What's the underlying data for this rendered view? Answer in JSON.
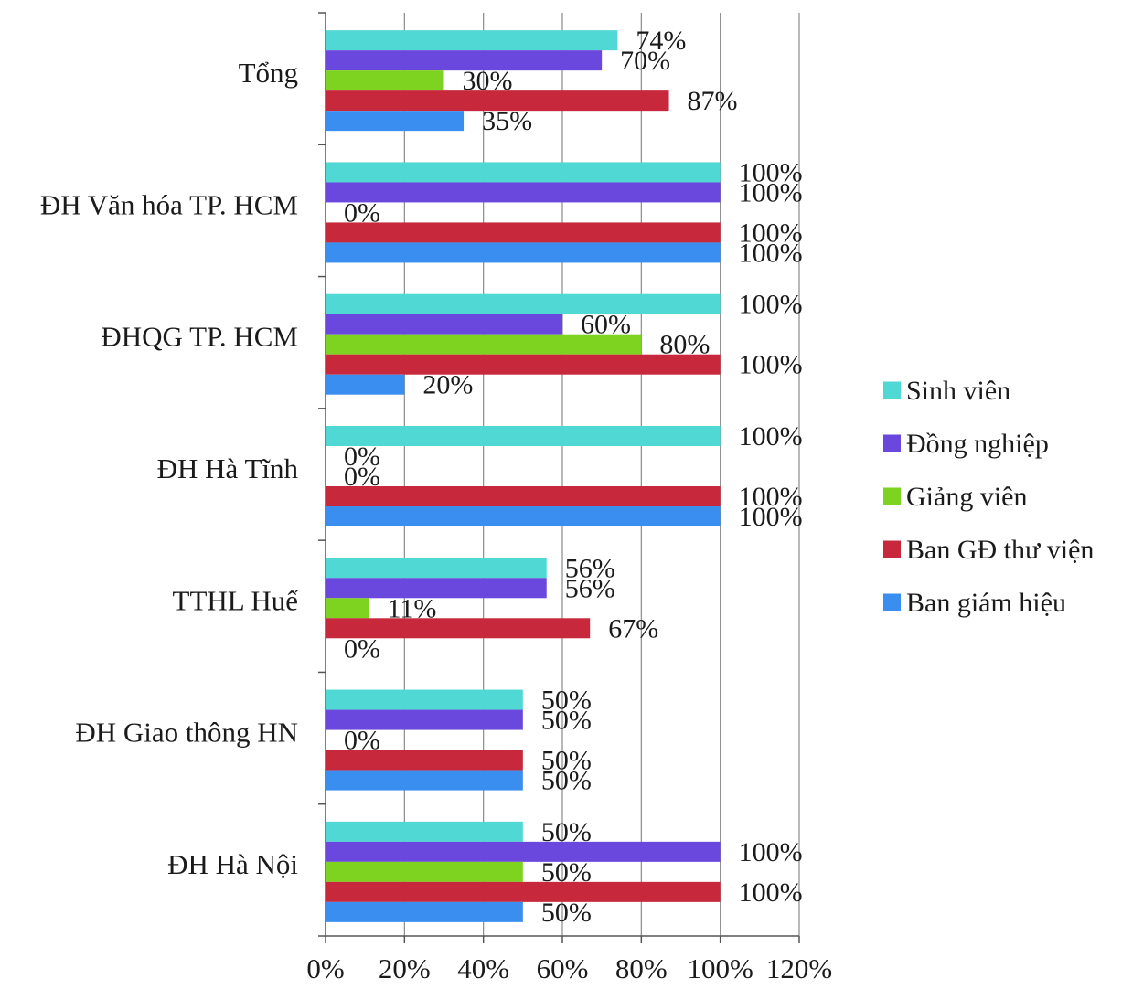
{
  "chart_data": {
    "type": "bar",
    "orientation": "horizontal",
    "categories": [
      "Tổng",
      "ĐH Văn hóa TP. HCM",
      "ĐHQG TP. HCM",
      "ĐH Hà Tĩnh",
      "TTHL Huế",
      "ĐH Giao thông HN",
      "ĐH Hà Nội"
    ],
    "series": [
      {
        "name": "Sinh viên",
        "color": "#4fd8d4",
        "values": [
          74,
          100,
          100,
          100,
          56,
          50,
          50
        ]
      },
      {
        "name": "Đồng nghiệp",
        "color": "#6a48de",
        "values": [
          70,
          100,
          60,
          0,
          56,
          50,
          100
        ]
      },
      {
        "name": "Giảng viên",
        "color": "#7ed321",
        "values": [
          30,
          0,
          80,
          0,
          11,
          0,
          50
        ]
      },
      {
        "name": "Ban GĐ thư viện",
        "color": "#c8283c",
        "values": [
          87,
          100,
          100,
          100,
          67,
          50,
          100
        ]
      },
      {
        "name": "Ban giám hiệu",
        "color": "#3a8ef0",
        "values": [
          35,
          100,
          20,
          100,
          0,
          50,
          50
        ]
      }
    ],
    "value_suffix": "%",
    "xlim": [
      0,
      120
    ],
    "xticks": [
      "0%",
      "20%",
      "40%",
      "60%",
      "80%",
      "100%",
      "120%"
    ],
    "grid": "vertical",
    "legend": "right",
    "title": "",
    "xlabel": "",
    "ylabel": ""
  }
}
